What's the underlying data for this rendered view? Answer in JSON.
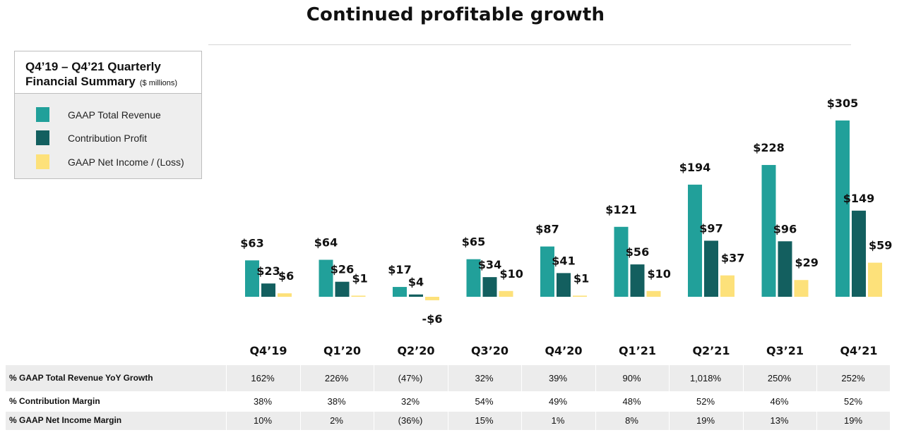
{
  "page_title": "Continued profitable growth",
  "legend": {
    "title_line1": "Q4’19 – Q4’21 Quarterly",
    "title_line2": "Financial Summary",
    "unit": "($ millions)",
    "items": [
      {
        "label": "GAAP Total Revenue",
        "color": "#21a09a"
      },
      {
        "label": "Contribution Profit",
        "color": "#135f5f"
      },
      {
        "label": "GAAP Net Income / (Loss)",
        "color": "#fde17a"
      }
    ]
  },
  "chart_data": {
    "type": "bar",
    "title": "Continued profitable growth",
    "categories": [
      "Q4’19",
      "Q1’20",
      "Q2’20",
      "Q3’20",
      "Q4’20",
      "Q1’21",
      "Q2’21",
      "Q3’21",
      "Q4’21"
    ],
    "series": [
      {
        "name": "GAAP Total Revenue",
        "color": "#21a09a",
        "values": [
          63,
          64,
          17,
          65,
          87,
          121,
          194,
          228,
          305
        ],
        "labels": [
          "$63",
          "$64",
          "$17",
          "$65",
          "$87",
          "$121",
          "$194",
          "$228",
          "$305"
        ]
      },
      {
        "name": "Contribution Profit",
        "color": "#135f5f",
        "values": [
          23,
          26,
          4,
          34,
          41,
          56,
          97,
          96,
          149
        ],
        "labels": [
          "$23",
          "$26",
          "$4",
          "$34",
          "$41",
          "$56",
          "$97",
          "$96",
          "$149"
        ]
      },
      {
        "name": "GAAP Net Income / (Loss)",
        "color": "#fde17a",
        "values": [
          6,
          1,
          -6,
          10,
          1,
          10,
          37,
          29,
          59
        ],
        "labels": [
          "$6",
          "$1",
          "-$6",
          "$10",
          "$1",
          "$10",
          "$37",
          "$29",
          "$59"
        ]
      }
    ],
    "unit": "$ millions",
    "legend_position": "top-left",
    "grid": false
  },
  "table": {
    "rows": [
      {
        "label": "% GAAP Total Revenue YoY Growth",
        "values": [
          "162%",
          "226%",
          "(47%)",
          "32%",
          "39%",
          "90%",
          "1,018%",
          "250%",
          "252%"
        ]
      },
      {
        "label": "% Contribution Margin",
        "values": [
          "38%",
          "38%",
          "32%",
          "54%",
          "49%",
          "48%",
          "52%",
          "46%",
          "52%"
        ]
      },
      {
        "label": "% GAAP Net Income Margin",
        "values": [
          "10%",
          "2%",
          "(36%)",
          "15%",
          "1%",
          "8%",
          "19%",
          "13%",
          "19%"
        ]
      }
    ]
  }
}
